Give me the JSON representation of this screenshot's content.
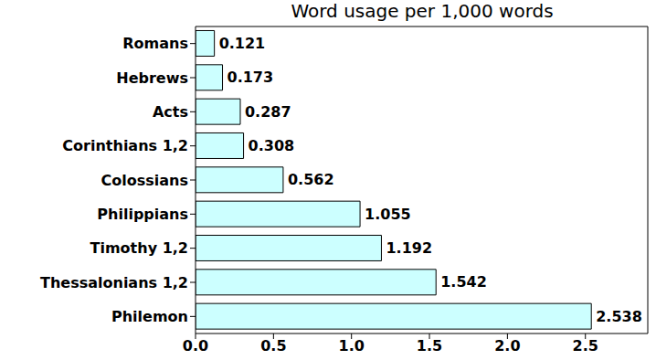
{
  "chart_data": {
    "type": "bar",
    "title": "Word usage per 1,000 words",
    "orientation": "horizontal",
    "categories": [
      "Romans",
      "Hebrews",
      "Acts",
      "Corinthians 1,2",
      "Colossians",
      "Philippians",
      "Timothy 1,2",
      "Thessalonians 1,2",
      "Philemon"
    ],
    "values": [
      0.121,
      0.173,
      0.287,
      0.308,
      0.562,
      1.055,
      1.192,
      1.542,
      2.538
    ],
    "color": "#ccffff",
    "xlim": [
      0,
      2.9
    ],
    "xticks": [
      {
        "value": 0,
        "label": "0.0"
      },
      {
        "value": 0.5,
        "label": "0.5"
      },
      {
        "value": 1,
        "label": "1.0"
      },
      {
        "value": 1.5,
        "label": "1.5"
      },
      {
        "value": 2,
        "label": "2.0"
      },
      {
        "value": 2.5,
        "label": "2.5"
      }
    ],
    "data_labels": true,
    "grid": false
  }
}
